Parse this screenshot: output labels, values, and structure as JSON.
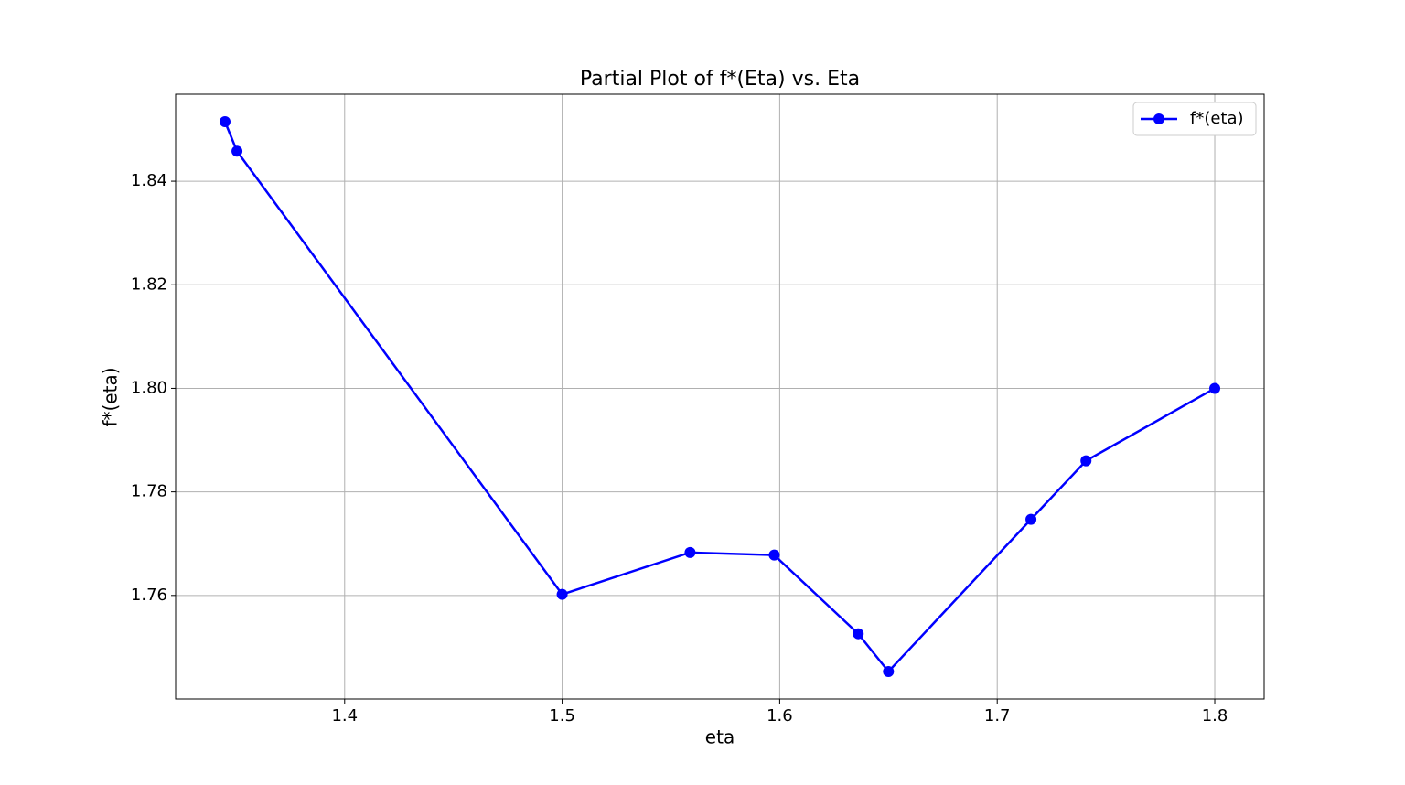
{
  "chart_data": {
    "type": "line",
    "title": "Partial Plot of f*(Eta) vs. Eta",
    "x_label": "eta",
    "y_label": "f*(eta)",
    "x": [
      1.345,
      1.3505,
      1.5,
      1.5588,
      1.5975,
      1.6361,
      1.65,
      1.7155,
      1.7408,
      1.8
    ],
    "series": [
      {
        "name": "f*(eta)",
        "color": "#0000ff",
        "values": [
          1.8515,
          1.8458,
          1.7602,
          1.7683,
          1.7678,
          1.7526,
          1.7453,
          1.7747,
          1.786,
          1.8
        ]
      }
    ],
    "xlim": [
      1.3223,
      1.8227
    ],
    "ylim": [
      1.74,
      1.8568
    ],
    "xticks": [
      1.4,
      1.5,
      1.6,
      1.7,
      1.8
    ],
    "yticks": [
      1.76,
      1.78,
      {
        "value": 1.8,
        "label": "1.80"
      },
      1.82,
      1.84
    ],
    "grid": true,
    "legend": "upper right",
    "marker": "circle"
  }
}
